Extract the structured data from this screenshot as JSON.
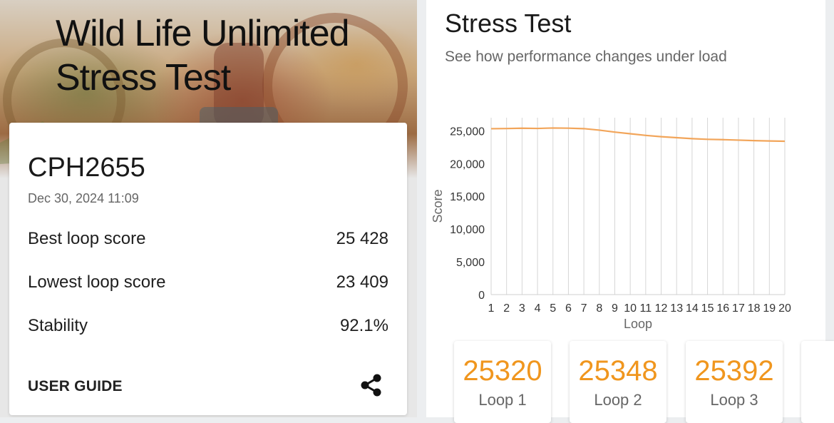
{
  "hero": {
    "title_line1": "Wild Life Unlimited",
    "title_line2": "Stress Test"
  },
  "result": {
    "device": "CPH2655",
    "date": "Dec 30, 2024 11:09",
    "rows": [
      {
        "label": "Best loop score",
        "value": "25 428"
      },
      {
        "label": "Lowest loop score",
        "value": "23 409"
      },
      {
        "label": "Stability",
        "value": "92.1%"
      }
    ],
    "user_guide_label": "USER GUIDE",
    "share_icon": "share-icon"
  },
  "stress": {
    "title": "Stress Test",
    "subtitle": "See how performance changes under load"
  },
  "chart_data": {
    "type": "line",
    "xlabel": "Loop",
    "ylabel": "Score",
    "ylim": [
      0,
      27000
    ],
    "yticks": [
      "0",
      "5,000",
      "10,000",
      "15,000",
      "20,000",
      "25,000"
    ],
    "ytick_values": [
      0,
      5000,
      10000,
      15000,
      20000,
      25000
    ],
    "x": [
      1,
      2,
      3,
      4,
      5,
      6,
      7,
      8,
      9,
      10,
      11,
      12,
      13,
      14,
      15,
      16,
      17,
      18,
      19,
      20
    ],
    "series": [
      {
        "values": [
          25320,
          25348,
          25392,
          25360,
          25428,
          25400,
          25330,
          25100,
          24800,
          24550,
          24300,
          24100,
          23950,
          23800,
          23700,
          23650,
          23580,
          23500,
          23450,
          23409
        ]
      }
    ],
    "grid": "vertical",
    "line_color": "#f2a55a"
  },
  "loops": [
    {
      "value": "25320",
      "label": "Loop 1"
    },
    {
      "value": "25348",
      "label": "Loop 2"
    },
    {
      "value": "25392",
      "label": "Loop 3"
    }
  ],
  "colors": {
    "accent": "#f0961e",
    "line": "#f2a55a"
  }
}
